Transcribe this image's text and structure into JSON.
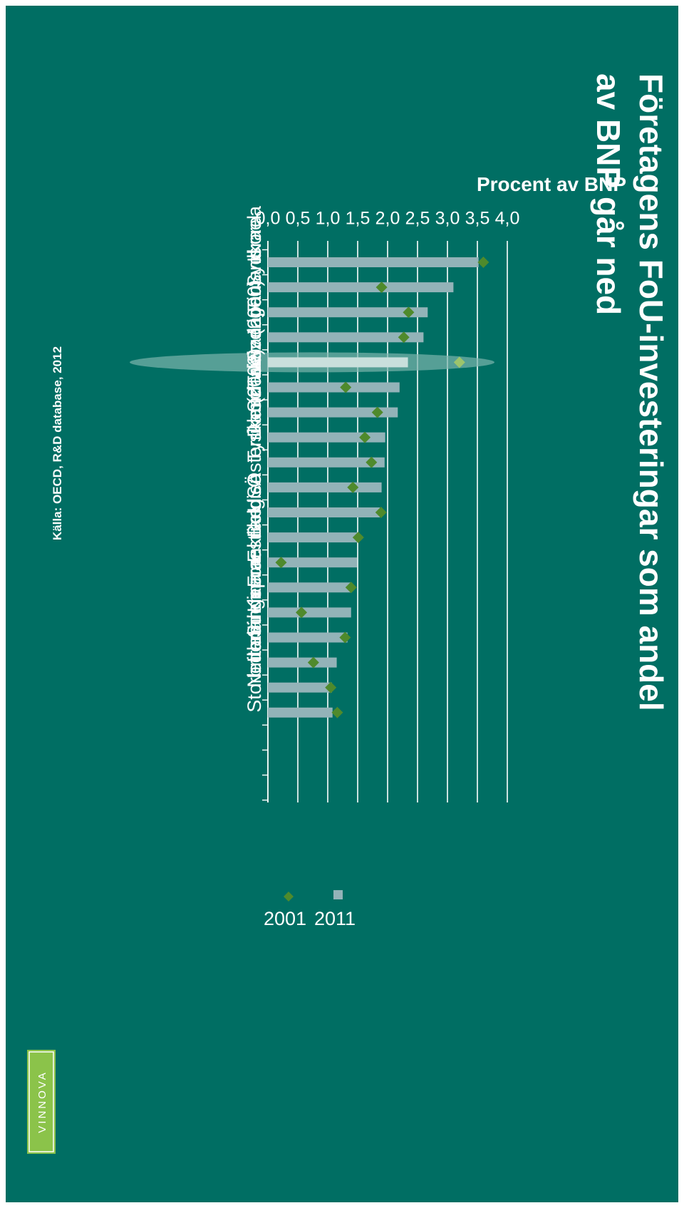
{
  "colors": {
    "background": "#006e63",
    "bar_2011": "#93b3b8",
    "marker_2001": "#4f8a2c",
    "highlight": "#7ab4ac",
    "logo": "#8bc34a"
  },
  "slide": {
    "title_line1": "Företagens FoU-investeringar som andel",
    "title_line2": "av BNP går ned",
    "source": "Källa: OECD, R&D database, 2012",
    "logo_text": "VINNOVA"
  },
  "chart_data": {
    "type": "bar",
    "orientation": "horizontal",
    "ylabel": "Procent av BNP",
    "xlim": [
      0,
      4
    ],
    "tick_labels": [
      "0,0",
      "0,5",
      "1,0",
      "1,5",
      "2,0",
      "2,5",
      "3,0",
      "3,5",
      "4,0"
    ],
    "grid": true,
    "highlighted_category": "Sverige",
    "categories": [
      "Israel",
      "Sydkorea",
      "Finland",
      "Japan",
      "Sverige",
      "Taiwan",
      "Schweiz (2000)",
      "Danmark",
      "Tyskland",
      "Österrike (2002)",
      "USA",
      "Belgien",
      "Estland",
      "Frankrike",
      "Kina",
      "Singapore",
      "Irland",
      "Nederländerna",
      "Storbritannien"
    ],
    "series": [
      {
        "name": "2011",
        "kind": "bar",
        "values": [
          3.52,
          3.1,
          2.67,
          2.6,
          2.34,
          2.2,
          2.17,
          1.96,
          1.95,
          1.9,
          1.87,
          1.5,
          1.49,
          1.4,
          1.39,
          1.33,
          1.15,
          1.07,
          1.08
        ]
      },
      {
        "name": "2001",
        "kind": "marker",
        "values": [
          3.6,
          1.9,
          2.35,
          2.27,
          3.2,
          1.3,
          1.83,
          1.62,
          1.73,
          1.42,
          1.89,
          1.51,
          0.22,
          1.39,
          0.56,
          1.29,
          0.76,
          1.05,
          1.16
        ]
      }
    ],
    "legend": [
      {
        "name": "2011",
        "marker": "square"
      },
      {
        "name": "2001",
        "marker": "diamond"
      }
    ],
    "legend_position": "bottom"
  }
}
